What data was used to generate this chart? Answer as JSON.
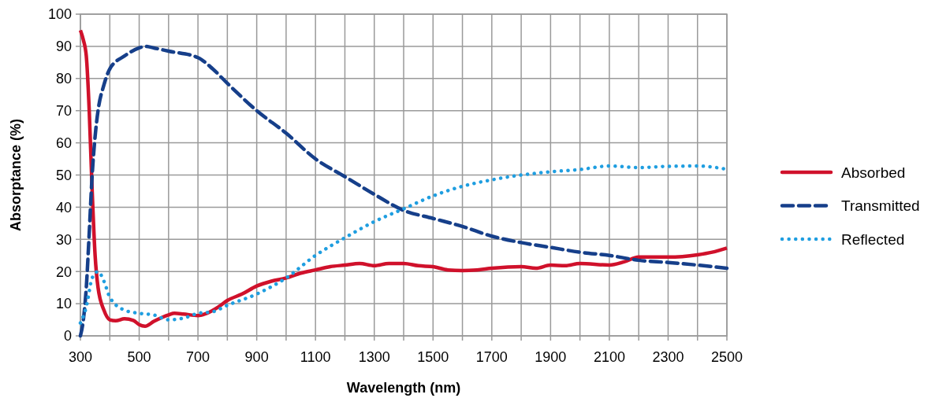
{
  "chart_data": {
    "type": "line",
    "xlabel": "Wavelength (nm)",
    "ylabel": "Absorptance (%)",
    "xlim": [
      300,
      2500
    ],
    "ylim": [
      0,
      100
    ],
    "xticks": [
      300,
      {
        "value": 400,
        "label": null
      },
      500,
      {
        "value": 600,
        "label": null
      },
      700,
      {
        "value": 800,
        "label": null
      },
      900,
      {
        "value": 1000,
        "label": null
      },
      1100,
      {
        "value": 1200,
        "label": null
      },
      1300,
      {
        "value": 1400,
        "label": null
      },
      1500,
      {
        "value": 1600,
        "label": null
      },
      1700,
      {
        "value": 1800,
        "label": null
      },
      1900,
      {
        "value": 2000,
        "label": null
      },
      2100,
      {
        "value": 2200,
        "label": null
      },
      2300,
      {
        "value": 2400,
        "label": null
      },
      2500
    ],
    "yticks": [
      0,
      10,
      20,
      30,
      40,
      50,
      60,
      70,
      80,
      90,
      100
    ],
    "grid": true,
    "legend": "right",
    "marker": "none",
    "series": [
      {
        "name": "Absorbed",
        "color": "#d0112b",
        "line_style": "solid",
        "x": [
          300,
          310,
          320,
          330,
          340,
          350,
          360,
          380,
          400,
          420,
          450,
          480,
          500,
          520,
          550,
          600,
          620,
          650,
          700,
          730,
          770,
          800,
          850,
          900,
          950,
          1000,
          1050,
          1100,
          1150,
          1200,
          1250,
          1300,
          1350,
          1400,
          1450,
          1500,
          1550,
          1600,
          1650,
          1700,
          1800,
          1850,
          1900,
          1950,
          2000,
          2100,
          2150,
          2200,
          2300,
          2400,
          2450,
          2500
        ],
        "values": [
          95,
          92,
          87,
          70,
          45,
          25,
          15,
          8,
          5,
          4.7,
          5.3,
          4.8,
          3.5,
          3,
          4.5,
          6.5,
          7,
          6.8,
          6.3,
          7,
          9,
          11,
          13,
          15.5,
          17,
          18,
          19.5,
          20.5,
          21.5,
          22,
          22.5,
          21.8,
          22.5,
          22.5,
          21.8,
          21.5,
          20.5,
          20.3,
          20.5,
          21,
          21.5,
          21,
          22,
          21.8,
          22.5,
          22,
          23,
          24.5,
          24.5,
          25.2,
          26,
          27.3
        ]
      },
      {
        "name": "Transmitted",
        "color": "#163f8a",
        "line_style": "dashed",
        "x": [
          300,
          310,
          320,
          330,
          340,
          350,
          360,
          380,
          400,
          450,
          500,
          520,
          550,
          600,
          700,
          750,
          800,
          900,
          1000,
          1100,
          1200,
          1300,
          1400,
          1500,
          1600,
          1700,
          1800,
          1900,
          2000,
          2100,
          2200,
          2300,
          2400,
          2500
        ],
        "values": [
          0,
          5,
          15,
          32,
          50,
          62,
          70,
          78,
          83,
          87,
          89.5,
          90,
          89.5,
          88.5,
          86.5,
          83,
          78.5,
          70,
          63,
          55,
          49.5,
          44,
          39,
          36.5,
          34,
          31,
          29,
          27.5,
          26,
          25,
          23.5,
          22.8,
          22,
          21
        ]
      },
      {
        "name": "Reflected",
        "color": "#1f9ee0",
        "line_style": "dotted",
        "x": [
          300,
          320,
          340,
          360,
          380,
          400,
          450,
          500,
          550,
          600,
          650,
          700,
          750,
          800,
          900,
          1000,
          1100,
          1200,
          1300,
          1400,
          1500,
          1600,
          1700,
          1800,
          1900,
          2000,
          2100,
          2200,
          2300,
          2400,
          2500
        ],
        "values": [
          4,
          9,
          18,
          20,
          17,
          12,
          8,
          7,
          6.5,
          5,
          5.5,
          7,
          7.5,
          9.5,
          13,
          18,
          25,
          30.5,
          35.5,
          39.5,
          43.5,
          46.5,
          48.5,
          50,
          51,
          51.7,
          52.8,
          52.3,
          52.7,
          52.8,
          51.8
        ]
      }
    ]
  }
}
